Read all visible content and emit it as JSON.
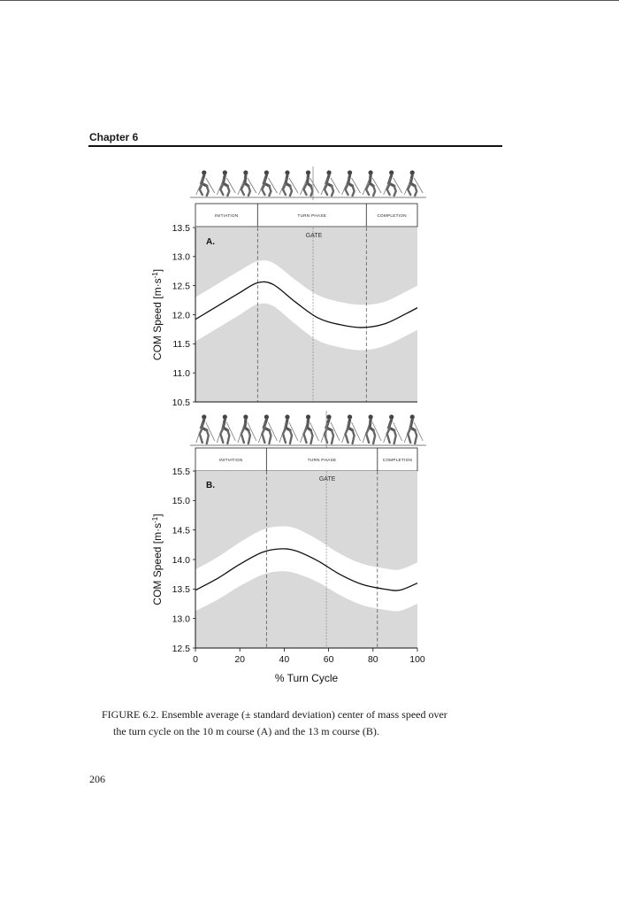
{
  "header": {
    "chapter": "Chapter 6"
  },
  "figure": {
    "skier_icon": "skier-icon",
    "phases": [
      "INITIATION",
      "TURN PHASE",
      "COMPLETION"
    ],
    "gate_label": "GATE",
    "ylabel_prefix": "COM Speed [m",
    "ylabel_mid": "s",
    "ylabel_sup": "-1",
    "ylabel_suffix": "]",
    "xlabel": "% Turn Cycle"
  },
  "chart_data": [
    {
      "type": "line",
      "panel": "A.",
      "xlim": [
        0,
        100
      ],
      "ylim": [
        10.5,
        13.5
      ],
      "yticks": [
        "13.5",
        "13.0",
        "12.5",
        "12.0",
        "11.5",
        "11.0",
        "10.5"
      ],
      "phase_boundaries": [
        28,
        53,
        77
      ],
      "series": [
        {
          "x": [
            0,
            10,
            20,
            28,
            35,
            45,
            55,
            65,
            75,
            85,
            95,
            100
          ],
          "mean": [
            11.92,
            12.15,
            12.38,
            12.55,
            12.52,
            12.22,
            11.95,
            11.83,
            11.78,
            11.84,
            12.02,
            12.12
          ],
          "sd": [
            0.38,
            0.38,
            0.38,
            0.37,
            0.37,
            0.38,
            0.39,
            0.39,
            0.39,
            0.38,
            0.38,
            0.38
          ]
        }
      ]
    },
    {
      "type": "line",
      "panel": "B.",
      "xlim": [
        0,
        100
      ],
      "ylim": [
        12.5,
        15.5
      ],
      "yticks": [
        "15.5",
        "15.0",
        "14.5",
        "14.0",
        "13.5",
        "13.0",
        "12.5"
      ],
      "xticks": [
        "0",
        "20",
        "40",
        "60",
        "80",
        "100"
      ],
      "phase_boundaries": [
        32,
        59,
        82
      ],
      "series": [
        {
          "x": [
            0,
            10,
            20,
            30,
            38,
            45,
            55,
            65,
            75,
            85,
            92,
            100
          ],
          "mean": [
            13.48,
            13.68,
            13.92,
            14.12,
            14.18,
            14.15,
            13.98,
            13.75,
            13.58,
            13.5,
            13.48,
            13.6
          ],
          "sd": [
            0.35,
            0.36,
            0.37,
            0.38,
            0.38,
            0.38,
            0.36,
            0.35,
            0.35,
            0.35,
            0.35,
            0.35
          ]
        }
      ]
    }
  ],
  "caption": {
    "line1": "FIGURE 6.2.  Ensemble average (± standard deviation) center of mass speed over",
    "line2": "the turn cycle on the 10 m course (A) and the 13 m course (B)."
  },
  "page_number": "206"
}
